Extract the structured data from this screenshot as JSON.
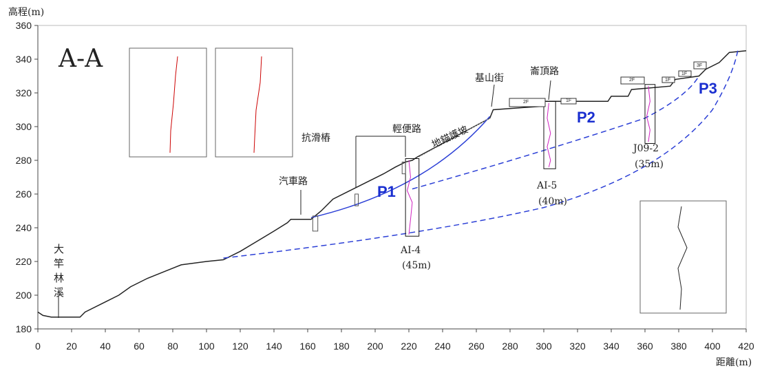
{
  "section": {
    "title": "A-A",
    "y_axis_label": "高程(m)",
    "x_axis_label": "距離(m)",
    "xticks": [
      0,
      20,
      40,
      60,
      80,
      100,
      120,
      140,
      160,
      180,
      200,
      220,
      240,
      260,
      280,
      300,
      320,
      340,
      360,
      380,
      400,
      420
    ],
    "yticks": [
      180,
      200,
      220,
      240,
      260,
      280,
      300,
      320,
      340,
      360
    ],
    "river": "大竿林溪",
    "road_labels": {
      "car_road": "汽車路",
      "anti_slide_piles": "抗滑樁",
      "light_road": "輕便路",
      "anchor_slope": "地錨護坡",
      "jishan_st": "基山街",
      "lunding_rd": "崙頂路"
    },
    "surfaces": [
      "P1",
      "P2",
      "P3"
    ],
    "boreholes": [
      {
        "name": "AI-4",
        "depth": "(45m)"
      },
      {
        "name": "AI-5",
        "depth": "(40m)"
      },
      {
        "name": "J09-2",
        "depth": "(35m)"
      }
    ],
    "buildings": [
      "2F",
      "1F",
      "2F",
      "1F",
      "1F",
      "3F"
    ]
  }
}
